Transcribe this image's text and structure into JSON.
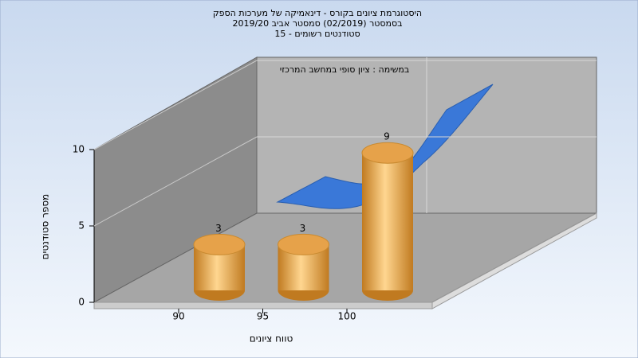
{
  "chart_data": {
    "type": "bar",
    "title": [
      "היסטוגרמת ציונים בקורס - דינאמיקה של מערכות הספק",
      "בסמסטר  (02/2019)  סמסטר אביב 2019/20",
      "סטודנטים רשומים - 15"
    ],
    "annotation": "במשימה : ציון סופי במחשב המרכזי",
    "x_label": "טווח ציונים",
    "y_label": "מספר סטודנטים",
    "categories": [
      "90",
      "95",
      "100"
    ],
    "values": [
      3,
      3,
      9
    ],
    "color": "#e6a24a",
    "ylim": [
      0,
      10
    ],
    "yticks": [
      0,
      5,
      10
    ],
    "grid": true
  }
}
